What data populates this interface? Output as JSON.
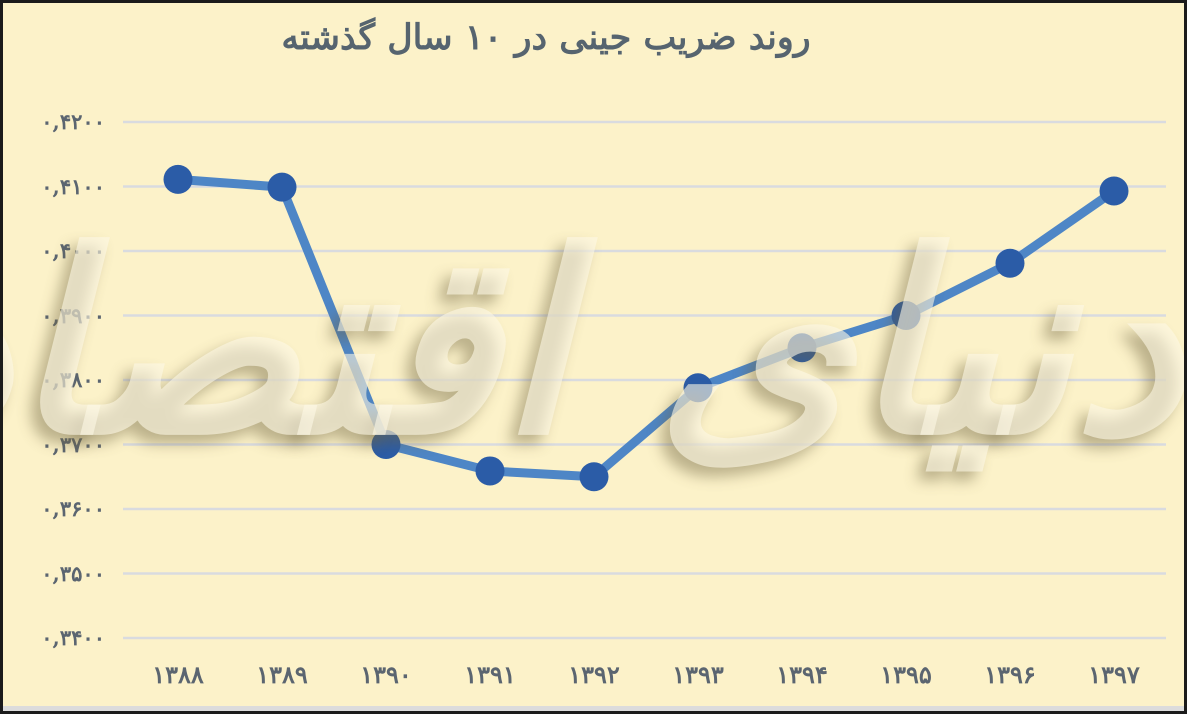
{
  "frame": {
    "watermark_text": "دنیای اقتصاد"
  },
  "chart_data": {
    "type": "line",
    "title": "روند ضریب جینی در ۱۰ سال گذشته",
    "categories": [
      "۱۳۸۸",
      "۱۳۸۹",
      "۱۳۹۰",
      "۱۳۹۱",
      "۱۳۹۲",
      "۱۳۹۳",
      "۱۳۹۴",
      "۱۳۹۵",
      "۱۳۹۶",
      "۱۳۹۷"
    ],
    "x_years": [
      1388,
      1389,
      1390,
      1391,
      1392,
      1393,
      1394,
      1395,
      1396,
      1397
    ],
    "values": [
      0.4111,
      0.4099,
      0.37,
      0.3659,
      0.365,
      0.3788,
      0.385,
      0.39,
      0.3981,
      0.4093
    ],
    "y_ticks": [
      0.42,
      0.41,
      0.4,
      0.39,
      0.38,
      0.37,
      0.36,
      0.35,
      0.34
    ],
    "y_tick_labels": [
      "۰,۴۲۰۰",
      "۰,۴۱۰۰",
      "۰,۴۰۰۰",
      "۰,۳۹۰۰",
      "۰,۳۸۰۰",
      "۰,۳۷۰۰",
      "۰,۳۶۰۰",
      "۰,۳۵۰۰",
      "۰,۳۴۰۰"
    ],
    "ylim": [
      0.34,
      0.42
    ],
    "grid": true,
    "legend": "none",
    "xlabel": "",
    "ylabel": ""
  },
  "colors": {
    "background": "#FCF2C9",
    "frame_border": "#1B1B1B",
    "gridline": "#D9DBDF",
    "line": "#4E86C6",
    "marker": "#2B5CA7",
    "label_text": "#5B6570",
    "title_text": "#56646F",
    "watermark_fill": "rgba(253,248,230,0.60)",
    "bottom_strip": "#DCDCDC"
  }
}
